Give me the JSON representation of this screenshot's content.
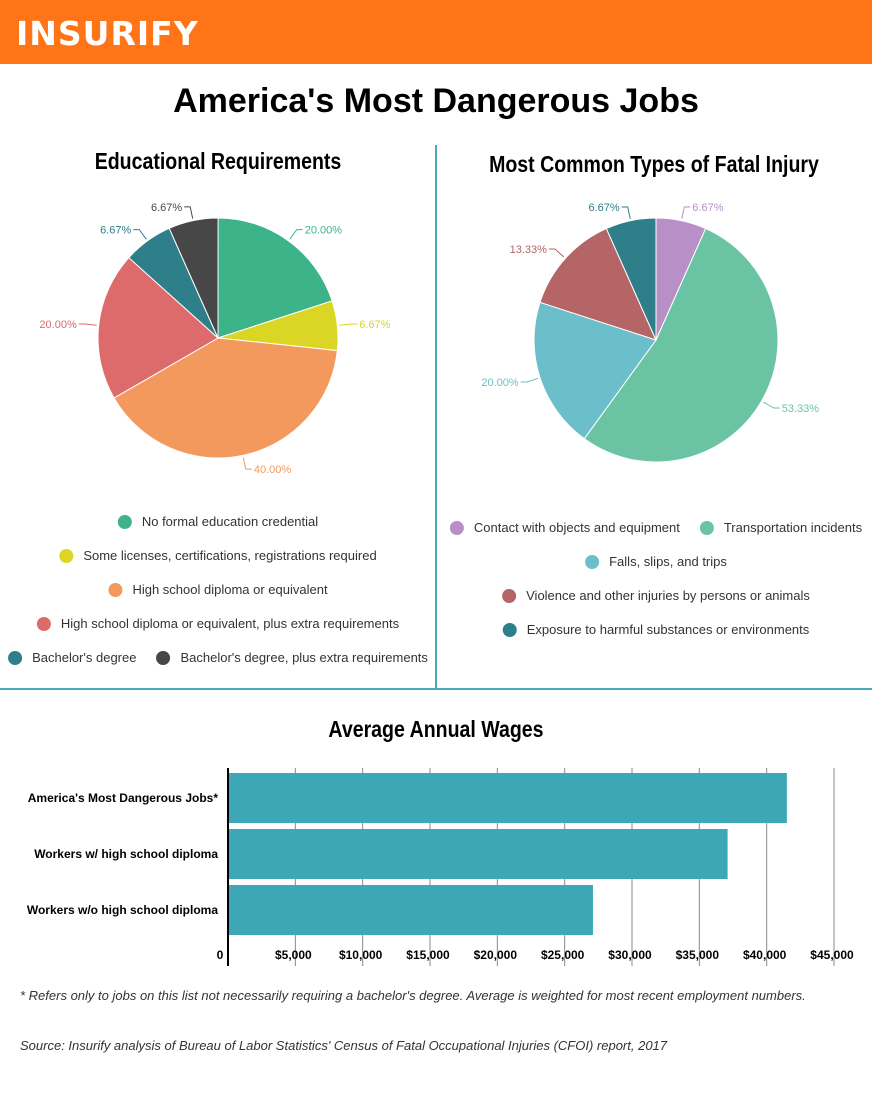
{
  "header": {
    "logo": "INSURIFY",
    "brand_color": "#ff7417"
  },
  "title": "America's Most Dangerous Jobs",
  "chart_data": [
    {
      "type": "pie",
      "title": "Educational Requirements",
      "slices": [
        {
          "name": "No formal education credential",
          "value": 20.0,
          "label": "20.00%",
          "color": "#3db38a"
        },
        {
          "name": "Some licenses, certifications, registrations required",
          "value": 6.67,
          "label": "6.67%",
          "color": "#dbd523"
        },
        {
          "name": "High school diploma or equivalent",
          "value": 40.0,
          "label": "40.00%",
          "color": "#f4995d"
        },
        {
          "name": "High school diploma or equivalent, plus extra requirements",
          "value": 20.0,
          "label": "20.00%",
          "color": "#dd6b6b"
        },
        {
          "name": "Bachelor's degree",
          "value": 6.67,
          "label": "6.67%",
          "color": "#2e7f8a"
        },
        {
          "name": "Bachelor's degree, plus extra requirements",
          "value": 6.67,
          "label": "6.67%",
          "color": "#474747"
        }
      ],
      "legend": "bottom"
    },
    {
      "type": "pie",
      "title": "Most Common Types of Fatal Injury",
      "slices": [
        {
          "name": "Contact with objects and equipment",
          "value": 6.67,
          "label": "6.67%",
          "color": "#b98fc7"
        },
        {
          "name": "Transportation incidents",
          "value": 53.33,
          "label": "53.33%",
          "color": "#6ac4a4"
        },
        {
          "name": "Falls, slips, and trips",
          "value": 20.0,
          "label": "20.00%",
          "color": "#6bbfcb"
        },
        {
          "name": "Violence and other injuries by persons or animals",
          "value": 13.33,
          "label": "13.33%",
          "color": "#b56565"
        },
        {
          "name": "Exposure to harmful substances or environments",
          "value": 6.67,
          "label": "6.67%",
          "color": "#2e7f8a"
        }
      ],
      "legend": "bottom"
    },
    {
      "type": "bar",
      "orientation": "horizontal",
      "title": "Average Annual Wages",
      "categories": [
        "America's Most Dangerous Jobs*",
        "Workers w/ high school diploma",
        "Workers w/o high school diploma"
      ],
      "values": [
        41500,
        37100,
        27100
      ],
      "xlim": [
        0,
        45000
      ],
      "ticks": [
        "0",
        "$5,000",
        "$10,000",
        "$15,000",
        "$20,000",
        "$25,000",
        "$30,000",
        "$35,000",
        "$40,000",
        "$45,000"
      ],
      "grid": true,
      "color": "#3ea7b5"
    }
  ],
  "footnote": "* Refers only to jobs on this list not necessarily requiring a bachelor's degree. Average is weighted for most recent employment numbers.",
  "source": "Source: Insurify analysis of Bureau of Labor Statistics' Census of Fatal Occupational Injuries (CFOI) report, 2017"
}
